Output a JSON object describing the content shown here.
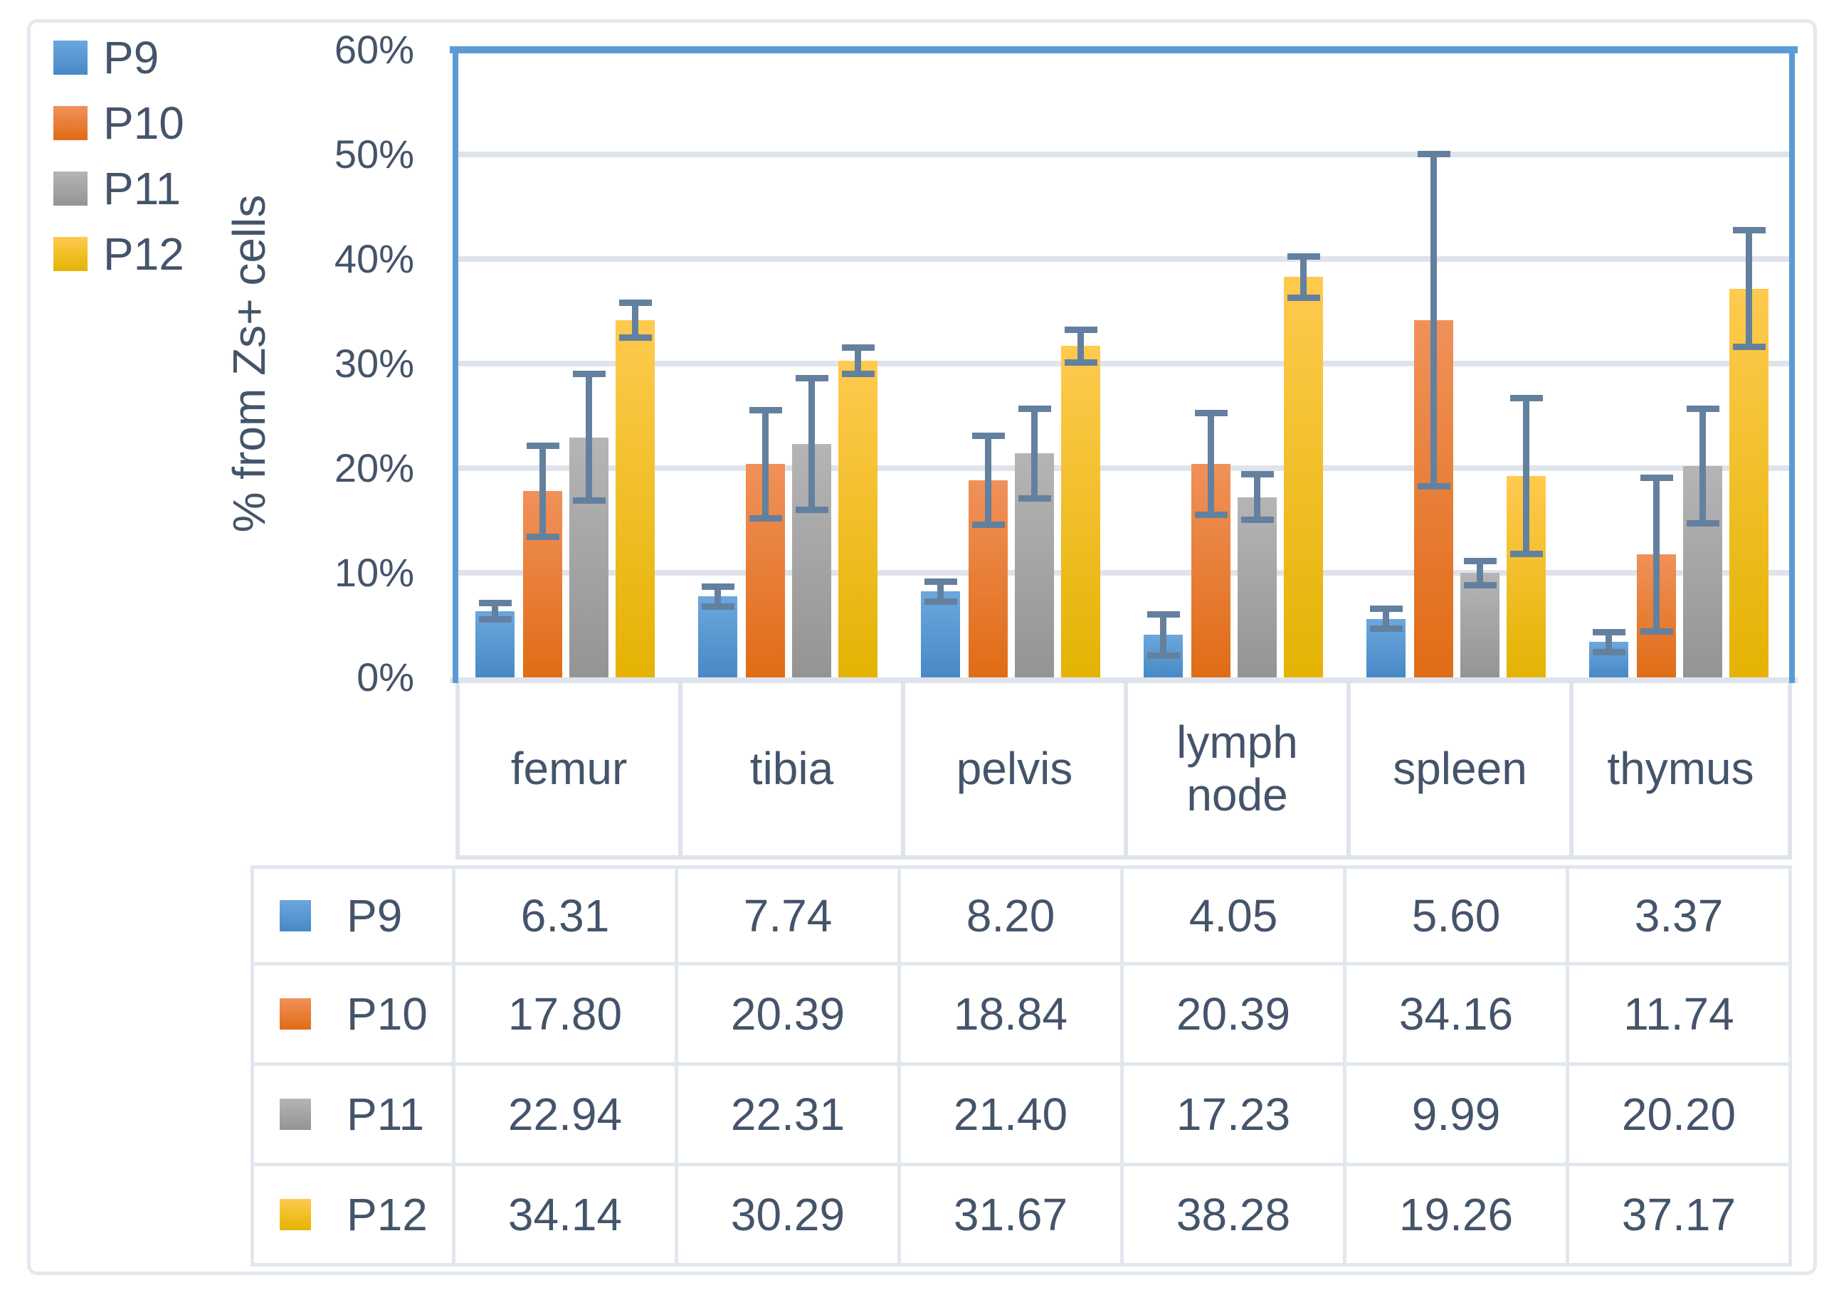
{
  "colors": {
    "text": "#44546a",
    "axis_frame": "#5b9bd5",
    "gridline": "#dfe3ec",
    "error_bar": "#64809f",
    "figure_border": "#e4e9f0"
  },
  "legend": {
    "items": [
      {
        "label": "P9",
        "color": "#5b9bd5",
        "gradient": [
          "#6ca7de",
          "#4789c6"
        ]
      },
      {
        "label": "P10",
        "color": "#ed7d31",
        "gradient": [
          "#f0915a",
          "#e06c15"
        ]
      },
      {
        "label": "P11",
        "color": "#a5a5a5",
        "gradient": [
          "#b5b5b5",
          "#949494"
        ]
      },
      {
        "label": "P12",
        "color": "#ffc000",
        "gradient": [
          "#ffca4f",
          "#e4b303"
        ]
      }
    ]
  },
  "y_axis": {
    "title": "% from Zs+ cells",
    "tick_labels": [
      "0%",
      "10%",
      "20%",
      "30%",
      "40%",
      "50%",
      "60%"
    ],
    "tick_values": [
      0,
      10,
      20,
      30,
      40,
      50,
      60
    ]
  },
  "chart_data": {
    "type": "bar",
    "title": "",
    "categories": [
      "femur",
      "tibia",
      "pelvis",
      "lymph node",
      "spleen",
      "thymus"
    ],
    "series": [
      {
        "name": "P9",
        "color": "#5b9bd5",
        "gradient": [
          "#6ca7de",
          "#4789c6"
        ],
        "values": [
          6.31,
          7.74,
          8.2,
          4.05,
          5.6,
          3.37
        ],
        "errors": [
          0.8,
          1.0,
          1.0,
          2.0,
          1.0,
          1.0
        ]
      },
      {
        "name": "P10",
        "color": "#ed7d31",
        "gradient": [
          "#f0915a",
          "#e06c15"
        ],
        "values": [
          17.8,
          20.39,
          18.84,
          20.39,
          34.16,
          11.74
        ],
        "errors": [
          4.4,
          5.2,
          4.3,
          4.9,
          15.9,
          7.4
        ]
      },
      {
        "name": "P11",
        "color": "#a5a5a5",
        "gradient": [
          "#b5b5b5",
          "#949494"
        ],
        "values": [
          22.94,
          22.31,
          21.4,
          17.23,
          9.99,
          20.2
        ],
        "errors": [
          6.1,
          6.3,
          4.3,
          2.2,
          1.2,
          5.5
        ]
      },
      {
        "name": "P12",
        "color": "#ffc000",
        "gradient": [
          "#ffca4f",
          "#e4b303"
        ],
        "values": [
          34.14,
          30.29,
          31.67,
          38.28,
          19.26,
          37.17
        ],
        "errors": [
          1.7,
          1.3,
          1.6,
          2.0,
          7.5,
          5.6
        ]
      }
    ],
    "xlabel": "",
    "ylabel": "% from Zs+ cells",
    "ylim": [
      0,
      60
    ],
    "ytick_step": 10,
    "grid": true,
    "error_bars": true,
    "legend_position": "top-left"
  },
  "table": {
    "column_headers": [
      "femur",
      "tibia",
      "pelvis",
      "lymph node",
      "spleen",
      "thymus"
    ],
    "rows": [
      {
        "label": "P9",
        "values": [
          "6.31",
          "7.74",
          "8.20",
          "4.05",
          "5.60",
          "3.37"
        ]
      },
      {
        "label": "P10",
        "values": [
          "17.80",
          "20.39",
          "18.84",
          "20.39",
          "34.16",
          "11.74"
        ]
      },
      {
        "label": "P11",
        "values": [
          "22.94",
          "22.31",
          "21.40",
          "17.23",
          "9.99",
          "20.20"
        ]
      },
      {
        "label": "P12",
        "values": [
          "34.14",
          "30.29",
          "31.67",
          "38.28",
          "19.26",
          "37.17"
        ]
      }
    ]
  }
}
